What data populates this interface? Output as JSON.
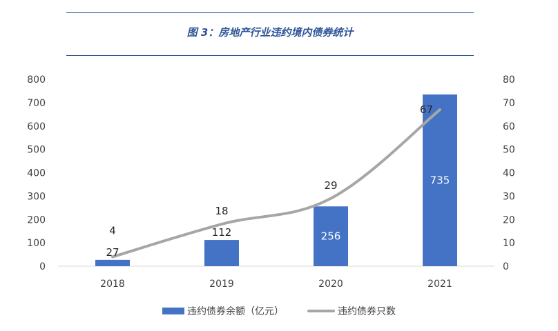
{
  "chart_data": {
    "type": "bar+line",
    "title": "图 3：房地产行业违约境内债券统计",
    "categories": [
      "2018",
      "2019",
      "2020",
      "2021"
    ],
    "series": [
      {
        "name": "违约债券余额（亿元）",
        "type": "bar",
        "axis": "left",
        "color": "#4472c4",
        "values": [
          27,
          112,
          256,
          735
        ]
      },
      {
        "name": "违约债券只数",
        "type": "line",
        "axis": "right",
        "color": "#a6a6a6",
        "values": [
          4,
          18,
          29,
          67
        ]
      }
    ],
    "y_left": {
      "ylim": [
        0,
        800
      ],
      "ticks": [
        "0",
        "100",
        "200",
        "300",
        "400",
        "500",
        "600",
        "700",
        "800"
      ]
    },
    "y_right": {
      "ylim": [
        0,
        80
      ],
      "ticks": [
        "0",
        "10",
        "20",
        "30",
        "40",
        "50",
        "60",
        "70",
        "80"
      ]
    },
    "grid": false,
    "legend_position": "bottom"
  }
}
